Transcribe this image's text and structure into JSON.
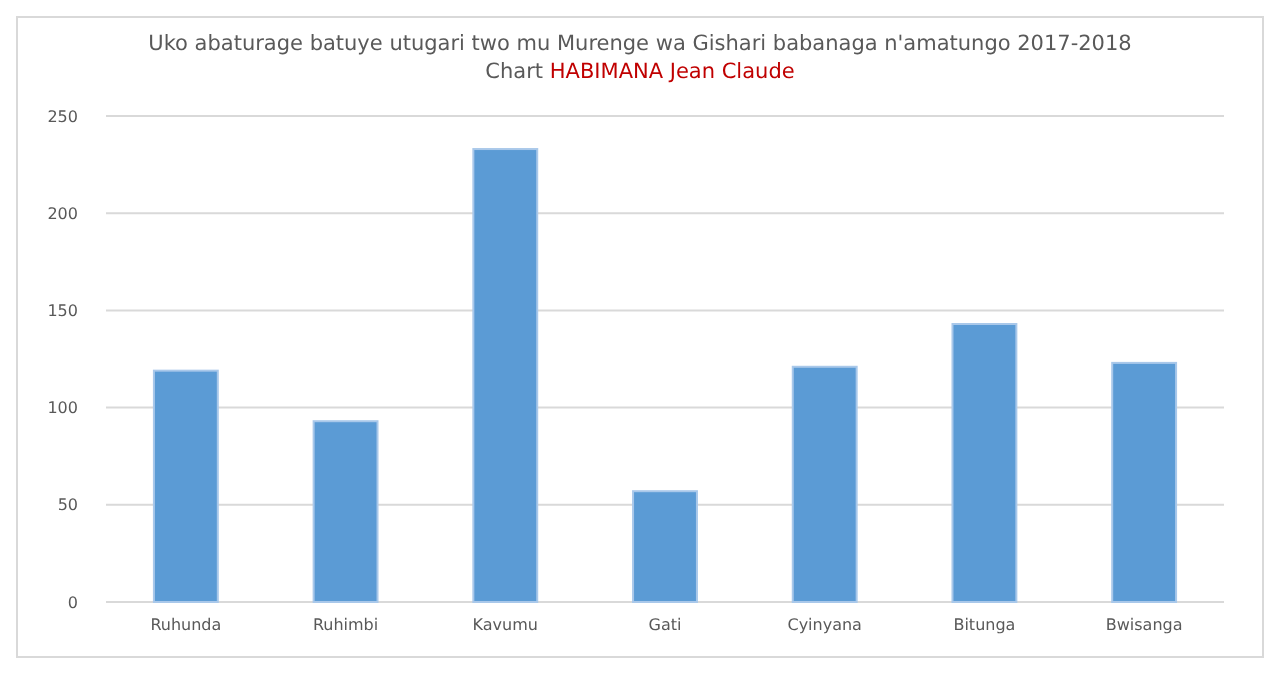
{
  "chart_data": {
    "type": "bar",
    "title": "Uko abaturage batuye utugari two mu Murenge wa Gishari babanaga n'amatungo 2017-2018",
    "subtitle": "Chart HABIMANA Jean Claude",
    "categories": [
      "Ruhunda",
      "Ruhimbi",
      "Kavumu",
      "Gati",
      "Cyinyana",
      "Bitunga",
      "Bwisanga"
    ],
    "values": [
      119,
      93,
      233,
      57,
      121,
      143,
      123
    ],
    "color": "#5b9bd5",
    "ylim": [
      0,
      250
    ],
    "yticks": [
      0,
      50,
      100,
      150,
      200,
      250
    ],
    "grid": "y"
  }
}
